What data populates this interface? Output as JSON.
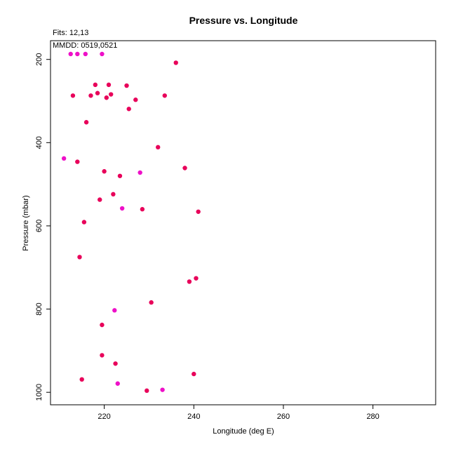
{
  "chart_data": {
    "type": "scatter",
    "title": "Pressure vs. Longitude",
    "xlabel": "Longitude (deg E)",
    "ylabel": "Pressure (mbar)",
    "xlim": [
      208,
      294
    ],
    "ylim": [
      1030,
      155
    ],
    "y_reversed": true,
    "grid": false,
    "x_ticks": [
      220,
      240,
      260,
      280
    ],
    "y_ticks": [
      200,
      400,
      600,
      800,
      1000
    ],
    "annotations": {
      "fits": "Fits: 12,13",
      "mmdd": "MMDD: 0519,0521"
    },
    "colors": {
      "series_0519": "#e8005a",
      "series_0521": "#ee10c8"
    },
    "series": [
      {
        "color": "#e8005a",
        "points": [
          {
            "x": 218,
            "y": 261
          },
          {
            "x": 221,
            "y": 261
          },
          {
            "x": 225,
            "y": 263
          },
          {
            "x": 236,
            "y": 208
          },
          {
            "x": 213,
            "y": 287
          },
          {
            "x": 217,
            "y": 287
          },
          {
            "x": 218.5,
            "y": 281
          },
          {
            "x": 220.5,
            "y": 292
          },
          {
            "x": 221.5,
            "y": 284
          },
          {
            "x": 227,
            "y": 297
          },
          {
            "x": 233.5,
            "y": 287
          },
          {
            "x": 225.5,
            "y": 319
          },
          {
            "x": 216,
            "y": 351
          },
          {
            "x": 232,
            "y": 411
          },
          {
            "x": 214,
            "y": 446
          },
          {
            "x": 238,
            "y": 461
          },
          {
            "x": 220,
            "y": 469
          },
          {
            "x": 223.5,
            "y": 480
          },
          {
            "x": 222,
            "y": 524
          },
          {
            "x": 219,
            "y": 537
          },
          {
            "x": 228.5,
            "y": 560
          },
          {
            "x": 241,
            "y": 566
          },
          {
            "x": 215.5,
            "y": 591
          },
          {
            "x": 214.5,
            "y": 675
          },
          {
            "x": 240.5,
            "y": 726
          },
          {
            "x": 239,
            "y": 734
          },
          {
            "x": 230.5,
            "y": 784
          },
          {
            "x": 219.5,
            "y": 838
          },
          {
            "x": 219.5,
            "y": 911
          },
          {
            "x": 222.5,
            "y": 931
          },
          {
            "x": 240,
            "y": 956
          },
          {
            "x": 215,
            "y": 969
          },
          {
            "x": 229.5,
            "y": 996
          }
        ]
      },
      {
        "color": "#ee10c8",
        "points": [
          {
            "x": 212.5,
            "y": 187
          },
          {
            "x": 214,
            "y": 187
          },
          {
            "x": 215.8,
            "y": 187
          },
          {
            "x": 219.5,
            "y": 187
          },
          {
            "x": 211,
            "y": 438
          },
          {
            "x": 228,
            "y": 472
          },
          {
            "x": 224,
            "y": 558
          },
          {
            "x": 222.3,
            "y": 803
          },
          {
            "x": 223,
            "y": 979
          },
          {
            "x": 233,
            "y": 994
          }
        ]
      }
    ]
  }
}
